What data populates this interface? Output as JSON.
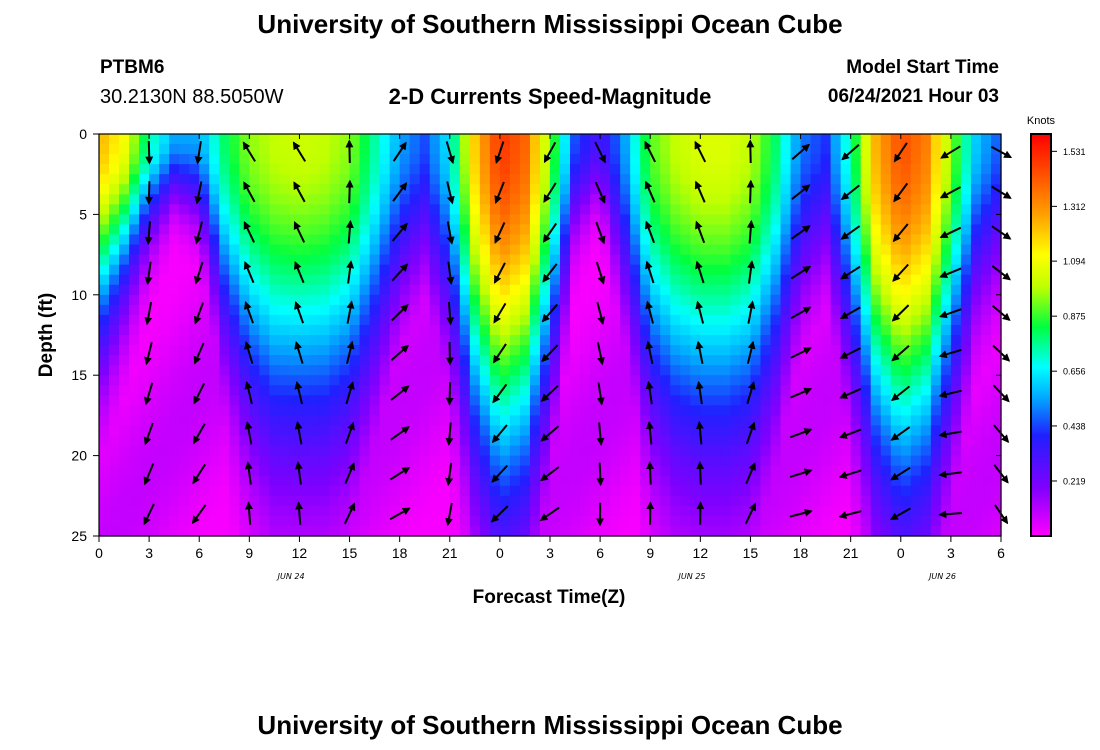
{
  "header": {
    "title": "University of Southern Mississippi Ocean Cube",
    "station_id": "PTBM6",
    "coordinates": "30.2130N  88.5050W",
    "subtitle": "2-D Currents Speed-Magnitude",
    "model_start_label": "Model Start Time",
    "model_start_value": "06/24/2021 Hour 03"
  },
  "footer": {
    "title": "University of Southern Mississippi Ocean Cube"
  },
  "chart_data": {
    "type": "heatmap",
    "title": "2-D Currents Speed-Magnitude",
    "xlabel": "Forecast Time(Z)",
    "ylabel": "Depth (ft)",
    "x_range_hours": [
      0,
      54
    ],
    "y_range_ft": [
      0,
      25
    ],
    "y_inverted": true,
    "x_ticks": [
      {
        "hour": 0,
        "label": "0"
      },
      {
        "hour": 3,
        "label": "3"
      },
      {
        "hour": 6,
        "label": "6"
      },
      {
        "hour": 9,
        "label": "9"
      },
      {
        "hour": 12,
        "label": "12"
      },
      {
        "hour": 15,
        "label": "15"
      },
      {
        "hour": 18,
        "label": "18"
      },
      {
        "hour": 21,
        "label": "21"
      },
      {
        "hour": 24,
        "label": "0"
      },
      {
        "hour": 27,
        "label": "3"
      },
      {
        "hour": 30,
        "label": "6"
      },
      {
        "hour": 33,
        "label": "9"
      },
      {
        "hour": 36,
        "label": "12"
      },
      {
        "hour": 39,
        "label": "15"
      },
      {
        "hour": 42,
        "label": "18"
      },
      {
        "hour": 45,
        "label": "21"
      },
      {
        "hour": 48,
        "label": "0"
      },
      {
        "hour": 51,
        "label": "3"
      },
      {
        "hour": 54,
        "label": "6"
      }
    ],
    "date_labels": [
      {
        "hour": 11.5,
        "label": "JUN 24"
      },
      {
        "hour": 35.5,
        "label": "JUN 25"
      },
      {
        "hour": 50.5,
        "label": "JUN 26"
      }
    ],
    "y_ticks": [
      0,
      5,
      10,
      15,
      20,
      25
    ],
    "colorbar": {
      "title": "Knots",
      "min": 0.0,
      "max": 1.6,
      "tick_values": [
        1.531,
        1.312,
        1.094,
        0.875,
        0.656,
        0.438,
        0.219
      ],
      "tick_labels": [
        "1.531",
        "1.312",
        "1.094",
        "0.875",
        "0.656",
        "0.438",
        "0.219"
      ]
    },
    "speed_profile": {
      "description": "surface speed and depth-penetration per forecast hour (knots)",
      "hours": [
        0,
        1.5,
        3,
        4.5,
        6,
        7.5,
        9,
        10.5,
        12,
        13.5,
        15,
        16.5,
        18,
        19.5,
        21,
        22.5,
        24,
        25.5,
        27,
        28.5,
        30,
        31.5,
        33,
        34.5,
        36,
        37.5,
        39,
        40.5,
        42,
        43.5,
        45,
        46.5,
        48,
        49.5,
        51,
        52.5,
        54
      ],
      "surface": [
        1.25,
        1.1,
        0.75,
        0.55,
        0.55,
        0.8,
        0.95,
        1.0,
        1.02,
        1.0,
        0.95,
        0.75,
        0.55,
        0.45,
        0.65,
        1.2,
        1.5,
        1.4,
        0.95,
        0.45,
        0.3,
        0.55,
        0.9,
        1.0,
        1.05,
        1.05,
        1.0,
        0.8,
        0.5,
        0.42,
        0.75,
        1.25,
        1.45,
        1.35,
        0.95,
        0.6,
        0.45
      ],
      "decay_depth": [
        12,
        9,
        6,
        4,
        5,
        12,
        16,
        18,
        18,
        18,
        17,
        14,
        10,
        8,
        12,
        18,
        21,
        20,
        15,
        6,
        4,
        10,
        16,
        18,
        18.5,
        18.5,
        18,
        15,
        10,
        8,
        14,
        19,
        21,
        20,
        16,
        10,
        8
      ]
    },
    "vectors": {
      "description": "current direction arrows (degrees clockwise from north) sampled every 3 h at 2.5 ft depth steps",
      "hours": [
        3,
        6,
        9,
        12,
        15,
        18,
        21,
        24,
        27,
        30,
        33,
        36,
        39,
        42,
        45,
        48,
        51,
        54
      ],
      "directions_deg": [
        190,
        200,
        340,
        340,
        10,
        45,
        175,
        210,
        220,
        165,
        345,
        345,
        10,
        60,
        240,
        225,
        250,
        130
      ]
    }
  }
}
